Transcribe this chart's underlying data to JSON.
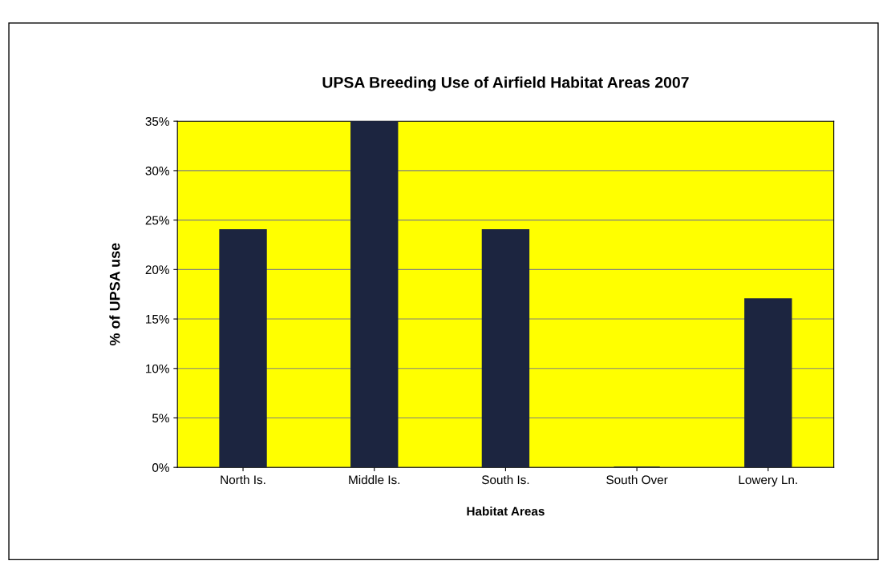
{
  "chart_data": {
    "type": "bar",
    "title": "UPSA Breeding Use of Airfield Habitat Areas 2007",
    "xlabel": "Habitat Areas",
    "ylabel": "% of UPSA use",
    "categories": [
      "North Is.",
      "Middle Is.",
      "South Is.",
      "South Over",
      "Lowery Ln."
    ],
    "values": [
      24,
      35,
      24,
      0,
      17
    ],
    "color": "#1c2540",
    "ylim": [
      0,
      35
    ],
    "yticks": [
      {
        "value": 0,
        "label": "0%"
      },
      {
        "value": 5,
        "label": "5%"
      },
      {
        "value": 10,
        "label": "10%"
      },
      {
        "value": 15,
        "label": "15%"
      },
      {
        "value": 20,
        "label": "20%"
      },
      {
        "value": 25,
        "label": "25%"
      },
      {
        "value": 30,
        "label": "30%"
      },
      {
        "value": 35,
        "label": "35%"
      }
    ],
    "grid": "y",
    "legend": false
  }
}
